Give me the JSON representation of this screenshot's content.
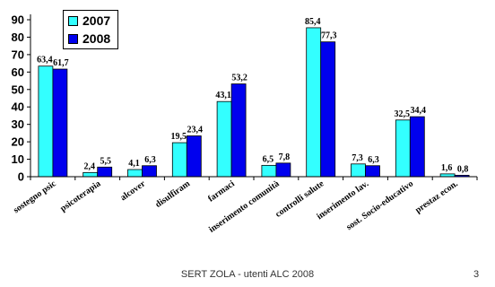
{
  "chart_data": {
    "type": "bar",
    "categories": [
      "sostegno psic",
      "psicoterapia",
      "alcover",
      "disulfiram",
      "farmaci",
      "inserimento comunità",
      "controlli salute",
      "inserimento lav.",
      "sost. Socio-educativo",
      "prestaz econ."
    ],
    "series": [
      {
        "name": "2007",
        "values": [
          63.4,
          2.4,
          4.1,
          19.5,
          43.1,
          6.5,
          85.4,
          7.3,
          32.5,
          1.6
        ],
        "labels": [
          "63,4",
          "2,4",
          "4,1",
          "19,5",
          "43,1",
          "6,5",
          "85,4",
          "7,3",
          "32,5",
          "1,6"
        ]
      },
      {
        "name": "2008",
        "values": [
          61.7,
          5.5,
          6.3,
          23.4,
          53.2,
          7.8,
          77.3,
          6.3,
          34.4,
          0.8
        ],
        "labels": [
          "61,7",
          "5,5",
          "6,3",
          "23,4",
          "53,2",
          "7,8",
          "77,3",
          "6,3",
          "34,4",
          "0,8"
        ]
      }
    ],
    "colors": [
      "#33FFFF",
      "#0000EE"
    ],
    "ylim": [
      0,
      90
    ],
    "yticks": [
      0,
      10,
      20,
      30,
      40,
      50,
      60,
      70,
      80,
      90
    ],
    "grid": false,
    "legend_position": "top-left"
  },
  "footer": {
    "text": "SERT ZOLA - utenti ALC 2008",
    "page": "3"
  }
}
